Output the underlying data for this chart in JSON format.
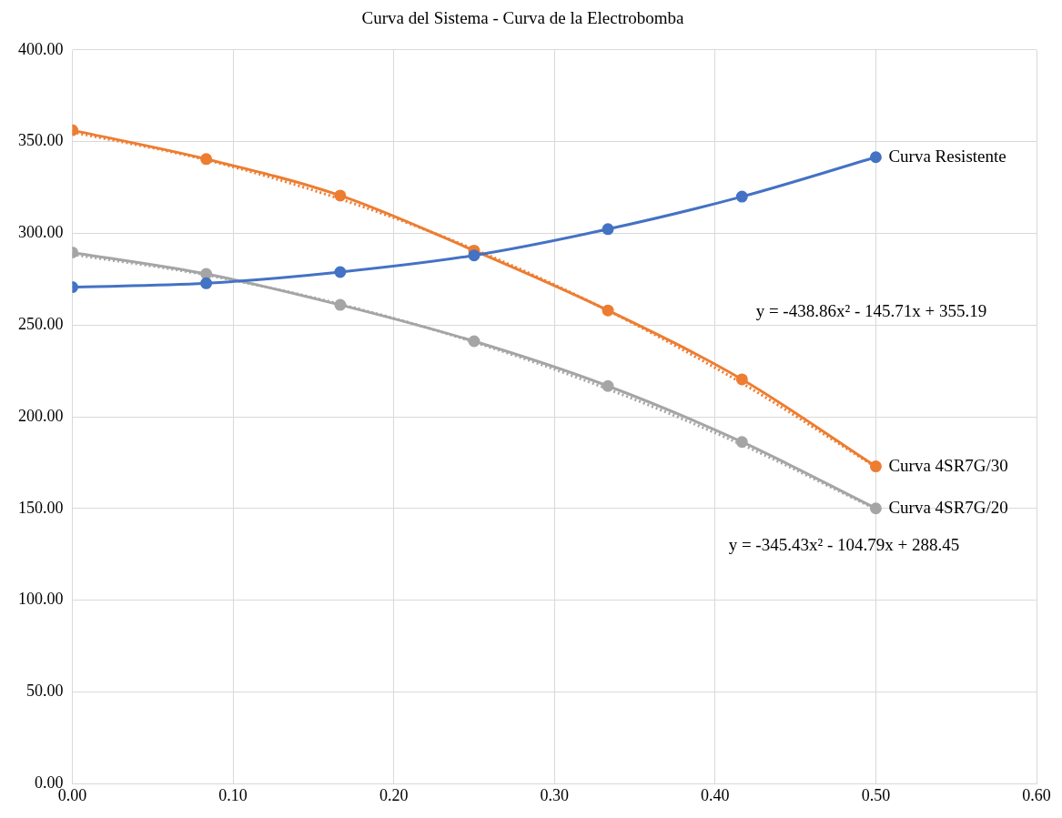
{
  "chart_data": {
    "type": "line",
    "title": "Curva del Sistema - Curva de la Electrobomba",
    "x": [
      0,
      0.0833,
      0.1667,
      0.25,
      0.3333,
      0.4167,
      0.5
    ],
    "series": [
      {
        "name": "Curva Resistente",
        "color": "#4472c4",
        "values": [
          270.7,
          272.8,
          278.9,
          288,
          302.3,
          320,
          341.5
        ]
      },
      {
        "name": "Curva 4SR7G/30",
        "color": "#ed7d31",
        "values": [
          356.2,
          340.5,
          320.6,
          290.6,
          258,
          220.4,
          173
        ]
      },
      {
        "name": "Curva 4SR7G/20",
        "color": "#a5a5a5",
        "values": [
          289.6,
          277.9,
          261,
          241.2,
          216.8,
          186.3,
          150.1
        ]
      },
      {
        "type": "line",
        "color": "#ed7d31",
        "marker": "none",
        "line_style": "dotted",
        "x": [
          0,
          0.0833,
          0.1667,
          0.25,
          0.3333,
          0.4167,
          0.5
        ],
        "values": [
          355.2,
          340,
          318.7,
          291.3,
          257.9,
          218.3,
          172.6
        ]
      },
      {
        "type": "line",
        "color": "#a5a5a5",
        "marker": "none",
        "line_style": "dotted",
        "x": [
          0,
          0.0833,
          0.1667,
          0.25,
          0.3333,
          0.4167,
          0.5
        ],
        "values": [
          288.5,
          277.3,
          261.4,
          240.7,
          215.1,
          184.8,
          149.7
        ]
      }
    ],
    "xlim": [
      0,
      0.6
    ],
    "xticks": [
      {
        "value": 0,
        "label": "0.00"
      },
      {
        "value": 0.1,
        "label": "0.10"
      },
      {
        "value": 0.2,
        "label": "0.20"
      },
      {
        "value": 0.3,
        "label": "0.30"
      },
      {
        "value": 0.4,
        "label": "0.40"
      },
      {
        "value": 0.5,
        "label": "0.50"
      },
      {
        "value": 0.6,
        "label": "0.60"
      }
    ],
    "ylim": [
      0,
      400
    ],
    "yticks": [
      {
        "value": 0,
        "label": "0.00"
      },
      {
        "value": 50,
        "label": "50.00"
      },
      {
        "value": 100,
        "label": "100.00"
      },
      {
        "value": 150,
        "label": "150.00"
      },
      {
        "value": 200,
        "label": "200.00"
      },
      {
        "value": 250,
        "label": "250.00"
      },
      {
        "value": 300,
        "label": "300.00"
      },
      {
        "value": 350,
        "label": "350.00"
      },
      {
        "value": 400,
        "label": "400.00"
      }
    ],
    "grid": true,
    "legend": false,
    "marker": "circle",
    "line_style": "solid",
    "annotations": [
      "y = -438.86x² - 145.71x + 355.19",
      "y = -345.43x² - 104.79x + 288.45"
    ]
  }
}
